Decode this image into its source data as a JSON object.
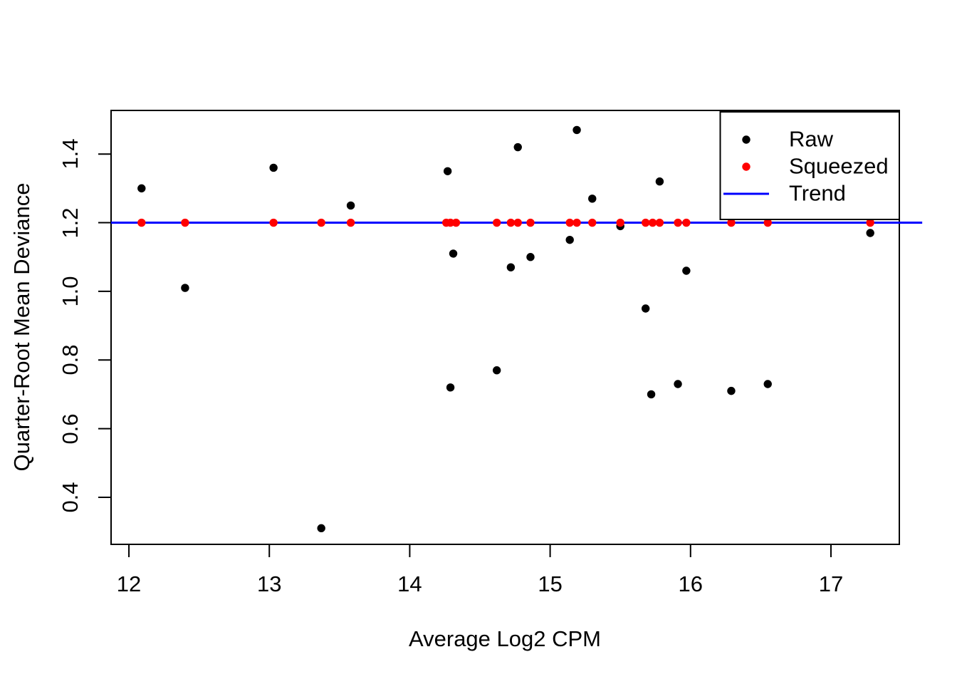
{
  "figure": {
    "background": "#FFFFFF",
    "text_color": "#000000"
  },
  "chart_data": {
    "type": "scatter",
    "title": "",
    "xlabel": "Average Log2 CPM",
    "ylabel": "Quarter-Root Mean Deviance",
    "xlim": [
      11.873,
      17.487
    ],
    "ylim": [
      0.263,
      1.527
    ],
    "x_ticks": [
      12,
      13,
      14,
      15,
      16,
      17
    ],
    "x_tick_labels": [
      "12",
      "13",
      "14",
      "15",
      "16",
      "17"
    ],
    "y_ticks": [
      0.4,
      0.6,
      0.8,
      1.0,
      1.2,
      1.4
    ],
    "y_tick_labels": [
      "0.4",
      "0.6",
      "0.8",
      "1.0",
      "1.2",
      "1.4"
    ],
    "grid": false,
    "legend": {
      "position": "top-right",
      "entries": [
        {
          "label": "Raw",
          "marker": "point",
          "color": "#000000"
        },
        {
          "label": "Squeezed",
          "marker": "point",
          "color": "#FF0000"
        },
        {
          "label": "Trend",
          "marker": "line",
          "color": "#0000FF"
        }
      ]
    },
    "series": [
      {
        "name": "Raw",
        "type": "points",
        "color": "#000000",
        "points": [
          [
            12.09,
            1.3
          ],
          [
            12.4,
            1.01
          ],
          [
            13.03,
            1.36
          ],
          [
            13.37,
            0.31
          ],
          [
            13.58,
            1.25
          ],
          [
            14.27,
            1.35
          ],
          [
            14.29,
            0.72
          ],
          [
            14.31,
            1.11
          ],
          [
            14.62,
            0.77
          ],
          [
            14.72,
            1.07
          ],
          [
            14.77,
            1.42
          ],
          [
            14.86,
            1.1
          ],
          [
            15.14,
            1.15
          ],
          [
            15.19,
            1.47
          ],
          [
            15.3,
            1.27
          ],
          [
            15.5,
            1.19
          ],
          [
            15.68,
            0.95
          ],
          [
            15.72,
            0.7
          ],
          [
            15.78,
            1.32
          ],
          [
            15.91,
            0.73
          ],
          [
            15.97,
            1.06
          ],
          [
            16.29,
            0.71
          ],
          [
            16.55,
            0.73
          ],
          [
            17.28,
            1.17
          ]
        ]
      },
      {
        "name": "Squeezed",
        "type": "points",
        "color": "#FF0000",
        "points": [
          [
            12.09,
            1.2
          ],
          [
            12.4,
            1.2
          ],
          [
            13.03,
            1.2
          ],
          [
            13.37,
            1.2
          ],
          [
            13.58,
            1.2
          ],
          [
            14.26,
            1.2
          ],
          [
            14.29,
            1.2
          ],
          [
            14.33,
            1.2
          ],
          [
            14.62,
            1.2
          ],
          [
            14.72,
            1.2
          ],
          [
            14.77,
            1.2
          ],
          [
            14.86,
            1.2
          ],
          [
            15.14,
            1.2
          ],
          [
            15.19,
            1.2
          ],
          [
            15.3,
            1.2
          ],
          [
            15.5,
            1.2
          ],
          [
            15.68,
            1.2
          ],
          [
            15.73,
            1.2
          ],
          [
            15.78,
            1.2
          ],
          [
            15.91,
            1.2
          ],
          [
            15.97,
            1.2
          ],
          [
            16.29,
            1.2
          ],
          [
            16.55,
            1.2
          ],
          [
            17.28,
            1.2
          ]
        ]
      },
      {
        "name": "Trend",
        "type": "line",
        "color": "#0000FF",
        "y": 1.2,
        "x_start": 11.873,
        "x_end": 17.65
      }
    ]
  }
}
